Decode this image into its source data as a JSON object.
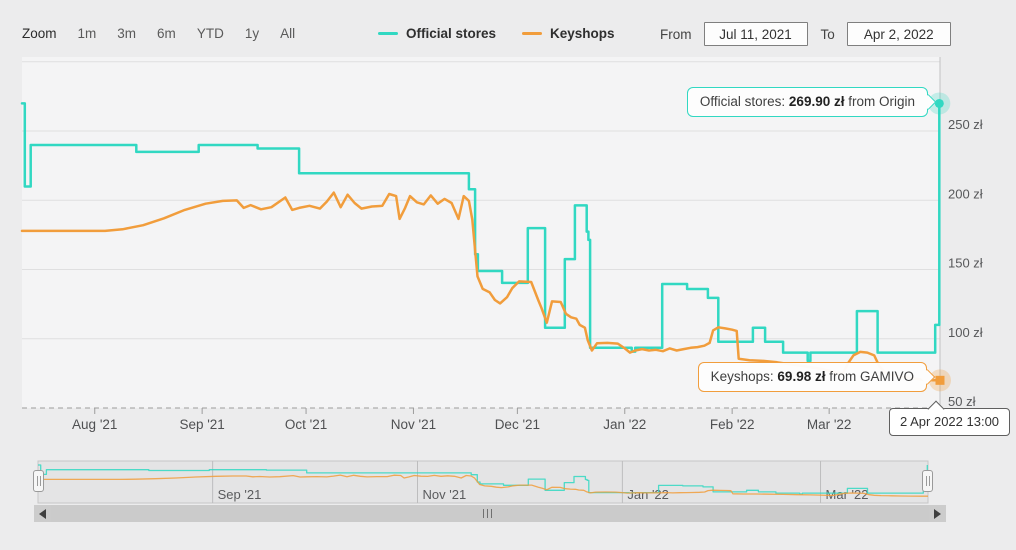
{
  "toolbar": {
    "zoom_label": "Zoom",
    "zoom_buttons": [
      "1m",
      "3m",
      "6m",
      "YTD",
      "1y",
      "All"
    ],
    "range": {
      "from_label": "From",
      "from_value": "Jul 11, 2021",
      "to_label": "To",
      "to_value": "Apr 2, 2022"
    }
  },
  "legend": [
    {
      "label": "Official stores",
      "color": "#31d8c2"
    },
    {
      "label": "Keyshops",
      "color": "#f19d3c"
    }
  ],
  "tooltips": {
    "official": {
      "label": "Official stores:",
      "value": "269.90 zł",
      "suffix": "from Origin"
    },
    "keyshops": {
      "label": "Keyshops:",
      "value": "69.98 zł",
      "suffix": "from GAMIVO"
    },
    "date": "2 Apr 2022 13:00"
  },
  "chart_data": {
    "type": "line",
    "x_unit_days_from": "Jul 11, 2021",
    "x_range_days": [
      0,
      265
    ],
    "currency": "zł",
    "ylim": [
      40,
      300
    ],
    "grid": true,
    "yticks": [
      {
        "value": 250,
        "label": "250 zł"
      },
      {
        "value": 200,
        "label": "200 zł"
      },
      {
        "value": 150,
        "label": "150 zł"
      },
      {
        "value": 100,
        "label": "100 zł"
      },
      {
        "value": 50,
        "label": "50 zł"
      }
    ],
    "unlabeled_gridlines": [
      300
    ],
    "xticks": [
      {
        "day": 21,
        "label": "Aug '21"
      },
      {
        "day": 52,
        "label": "Sep '21"
      },
      {
        "day": 82,
        "label": "Oct '21"
      },
      {
        "day": 113,
        "label": "Nov '21"
      },
      {
        "day": 143,
        "label": "Dec '21"
      },
      {
        "day": 174,
        "label": "Jan '22"
      },
      {
        "day": 205,
        "label": "Feb '22"
      },
      {
        "day": 233,
        "label": "Mar '22"
      }
    ],
    "navigator_xticks": [
      {
        "day": 52,
        "label": "Sep '21"
      },
      {
        "day": 113,
        "label": "Nov '21"
      },
      {
        "day": 174,
        "label": "Jan '22"
      },
      {
        "day": 233,
        "label": "Mar '22"
      }
    ],
    "series": [
      {
        "name": "Official stores",
        "color": "#31d8c2",
        "halo_color": "rgba(49,216,194,0.25)",
        "step": true,
        "marker": "circle",
        "current_value": 269.9,
        "current_store": "Origin",
        "points": [
          [
            0,
            269.9
          ],
          [
            0.8,
            209.9
          ],
          [
            2.5,
            239.9
          ],
          [
            33,
            234.9
          ],
          [
            51,
            239.9
          ],
          [
            68,
            237.4
          ],
          [
            80,
            219.5
          ],
          [
            129,
            207.9
          ],
          [
            130.8,
            161
          ],
          [
            131.6,
            148.9
          ],
          [
            138.6,
            140.3
          ],
          [
            146,
            179.9
          ],
          [
            151,
            107.9
          ],
          [
            156.7,
            157.5
          ],
          [
            159.6,
            196.3
          ],
          [
            163,
            177.4
          ],
          [
            163.5,
            171.4
          ],
          [
            164,
            93.5
          ],
          [
            176,
            90.7
          ],
          [
            177,
            93.5
          ],
          [
            184.8,
            139.5
          ],
          [
            192,
            135.9
          ],
          [
            198,
            129.5
          ],
          [
            201,
            97.8
          ],
          [
            211,
            107.9
          ],
          [
            214.5,
            97.8
          ],
          [
            219.7,
            90
          ],
          [
            226.8,
            84
          ],
          [
            227.6,
            90
          ],
          [
            241,
            120
          ],
          [
            247,
            90
          ],
          [
            263.6,
            110
          ],
          [
            264.8,
            269.9
          ]
        ]
      },
      {
        "name": "Keyshops",
        "color": "#f19d3c",
        "halo_color": "rgba(241,157,60,0.28)",
        "step": false,
        "marker": "square",
        "current_value": 69.98,
        "current_store": "GAMIVO",
        "points": [
          [
            0,
            177.9
          ],
          [
            24,
            177.9
          ],
          [
            29,
            179
          ],
          [
            35,
            182
          ],
          [
            41,
            187
          ],
          [
            47,
            193
          ],
          [
            53,
            197.5
          ],
          [
            58,
            199.5
          ],
          [
            62,
            199.9
          ],
          [
            64,
            194.5
          ],
          [
            66,
            196.5
          ],
          [
            69,
            193.5
          ],
          [
            72,
            195
          ],
          [
            76,
            202
          ],
          [
            78,
            193
          ],
          [
            80,
            194.5
          ],
          [
            83,
            196
          ],
          [
            86,
            194
          ],
          [
            88,
            199
          ],
          [
            90,
            205.5
          ],
          [
            92,
            195
          ],
          [
            94,
            204
          ],
          [
            96,
            198
          ],
          [
            98,
            194
          ],
          [
            101,
            195.5
          ],
          [
            104,
            196
          ],
          [
            106,
            204.5
          ],
          [
            108,
            203
          ],
          [
            109,
            186.5
          ],
          [
            110.5,
            194
          ],
          [
            112,
            203
          ],
          [
            114,
            198.5
          ],
          [
            116,
            197
          ],
          [
            118,
            203.5
          ],
          [
            120,
            197.5
          ],
          [
            122,
            201
          ],
          [
            124,
            198
          ],
          [
            126,
            186.5
          ],
          [
            127.5,
            203
          ],
          [
            129,
            199.5
          ],
          [
            130,
            186
          ],
          [
            131.5,
            145
          ],
          [
            133,
            136
          ],
          [
            135,
            133.5
          ],
          [
            136.5,
            128
          ],
          [
            138,
            125.5
          ],
          [
            140,
            130
          ],
          [
            141.5,
            136.5
          ],
          [
            143.5,
            141.4
          ],
          [
            147,
            141
          ],
          [
            149,
            128
          ],
          [
            150,
            122
          ],
          [
            151.5,
            111.6
          ],
          [
            153,
            127
          ],
          [
            155.5,
            126.5
          ],
          [
            157,
            118
          ],
          [
            158.5,
            115.5
          ],
          [
            160,
            114.5
          ],
          [
            161,
            110
          ],
          [
            162.5,
            108
          ],
          [
            163.3,
            99
          ],
          [
            164.5,
            91.5
          ],
          [
            166,
            96.7
          ],
          [
            169,
            97
          ],
          [
            172,
            96.5
          ],
          [
            174,
            93
          ],
          [
            175.5,
            90
          ],
          [
            177,
            91.5
          ],
          [
            179,
            92.5
          ],
          [
            181,
            91.5
          ],
          [
            183,
            92
          ],
          [
            185,
            91
          ],
          [
            187,
            93
          ],
          [
            189,
            91.5
          ],
          [
            191,
            92.5
          ],
          [
            193,
            93.5
          ],
          [
            195,
            94
          ],
          [
            197,
            95
          ],
          [
            198.5,
            97
          ],
          [
            199.5,
            106
          ],
          [
            201,
            108.3
          ],
          [
            203,
            107.5
          ],
          [
            205,
            106.5
          ],
          [
            206.3,
            105.7
          ],
          [
            206.9,
            85.5
          ],
          [
            210,
            84.5
          ],
          [
            214,
            84
          ],
          [
            218,
            83
          ],
          [
            222,
            81.5
          ],
          [
            226,
            80
          ],
          [
            230,
            78.5
          ],
          [
            233,
            77
          ],
          [
            235,
            75.5
          ],
          [
            237,
            75
          ],
          [
            238.5,
            82.5
          ],
          [
            240,
            88
          ],
          [
            242,
            90.5
          ],
          [
            244,
            90
          ],
          [
            246,
            88
          ],
          [
            247.5,
            80
          ],
          [
            249,
            76
          ],
          [
            251,
            74
          ],
          [
            254,
            72.5
          ],
          [
            257,
            71.5
          ],
          [
            260,
            70.5
          ],
          [
            263,
            70
          ],
          [
            265,
            69.98
          ]
        ]
      }
    ],
    "legend_position": "top",
    "navigator": true,
    "crosshair_day": 265
  }
}
